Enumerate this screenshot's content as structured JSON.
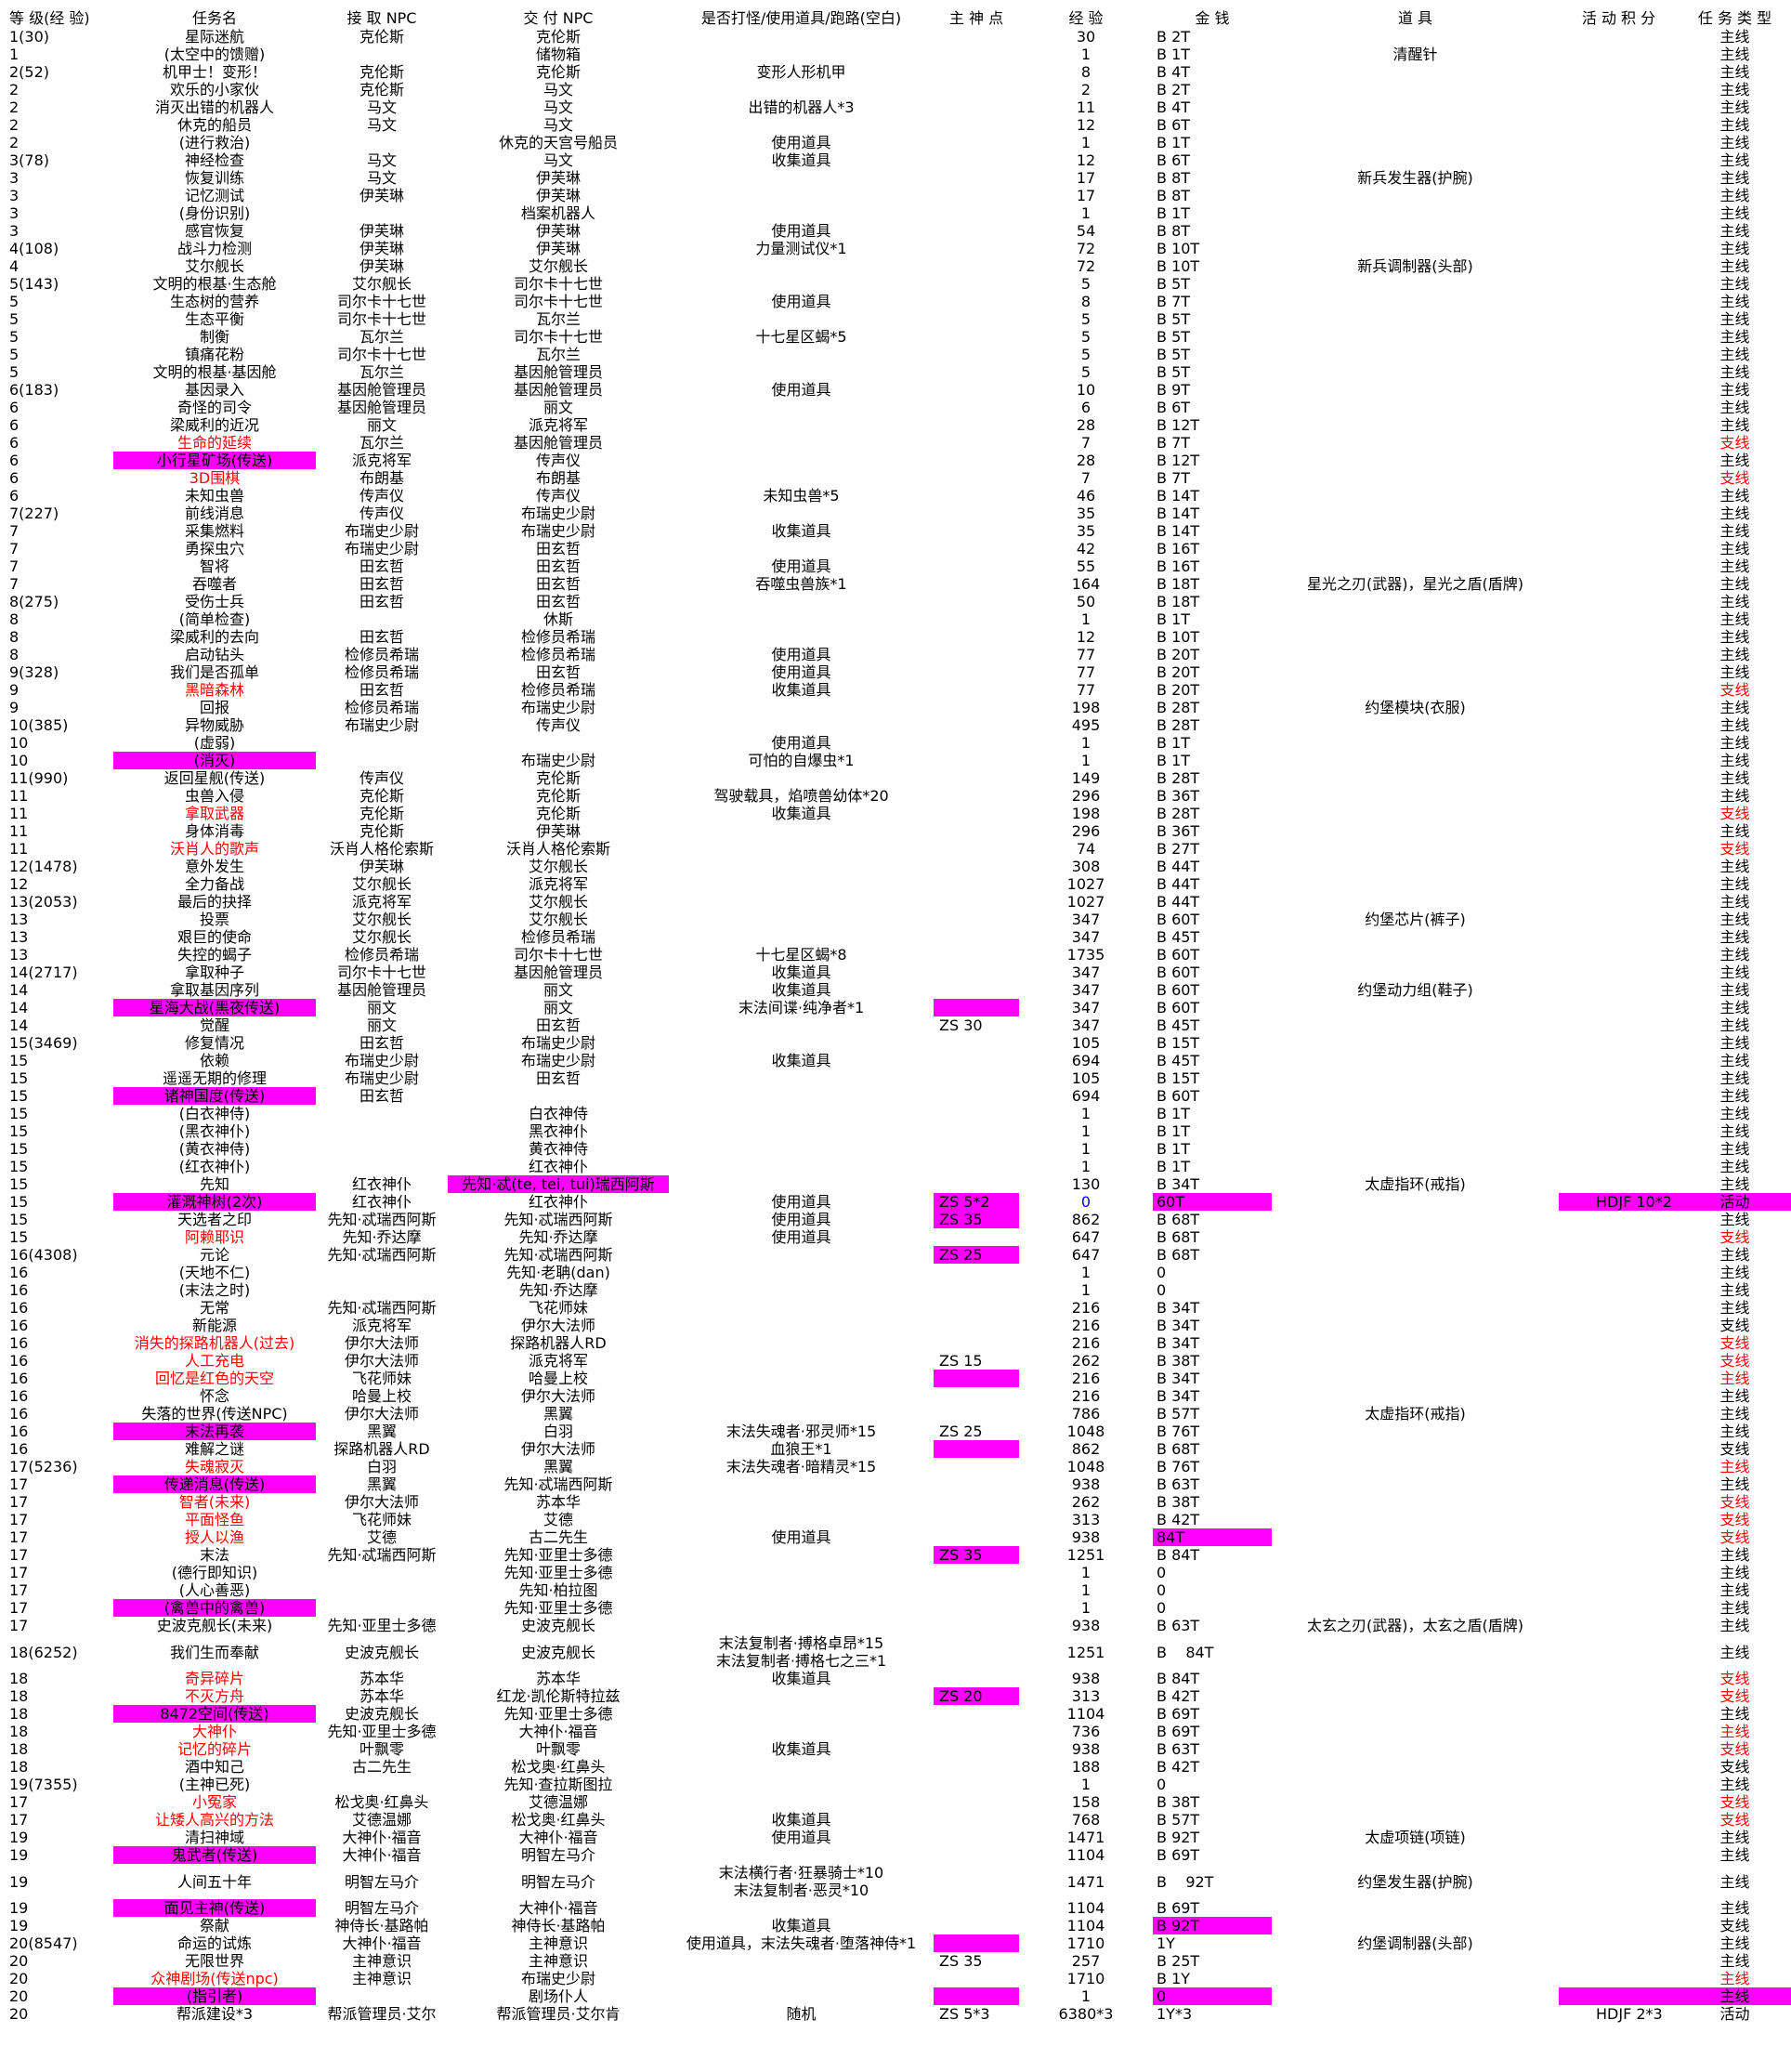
{
  "headers": [
    "等 级(经 验)",
    "任务名",
    "接 取 NPC",
    "交 付 NPC",
    "是否打怪/使用道具/跑路(空白)",
    "主 神 点",
    "经 验",
    "金 钱",
    "道 具",
    "活 动 积 分",
    "任 务 类 型"
  ],
  "rows": [
    [
      "1(30)",
      "星际迷航",
      "克伦斯",
      "克伦斯",
      "",
      "",
      "30",
      "B    2T",
      "",
      "",
      "主线"
    ],
    [
      "1",
      "(太空中的馈赠)",
      "",
      "储物箱",
      "",
      "",
      "1",
      "B    1T",
      "清醒针",
      "",
      "主线"
    ],
    [
      "2(52)",
      "机甲士！变形！",
      "克伦斯",
      "克伦斯",
      "变形人形机甲",
      "",
      "8",
      "B    4T",
      "",
      "",
      "主线"
    ],
    [
      "2",
      "欢乐的小家伙",
      "克伦斯",
      "马文",
      "",
      "",
      "2",
      "B    2T",
      "",
      "",
      "主线"
    ],
    [
      "2",
      "消灭出错的机器人",
      "马文",
      "马文",
      "出错的机器人*3",
      "",
      "11",
      "B    4T",
      "",
      "",
      "主线"
    ],
    [
      "2",
      "休克的船员",
      "马文",
      "马文",
      "",
      "",
      "12",
      "B    6T",
      "",
      "",
      "主线"
    ],
    [
      "2",
      "(进行救治)",
      "",
      "休克的天宫号船员",
      "使用道具",
      "",
      "1",
      "B    1T",
      "",
      "",
      "主线"
    ],
    [
      "3(78)",
      "神经检查",
      "马文",
      "马文",
      "收集道具",
      "",
      "12",
      "B    6T",
      "",
      "",
      "主线"
    ],
    [
      "3",
      "恢复训练",
      "马文",
      "伊芙琳",
      "",
      "",
      "17",
      "B    8T",
      "新兵发生器(护腕)",
      "",
      "主线"
    ],
    [
      "3",
      "记忆测试",
      "伊芙琳",
      "伊芙琳",
      "",
      "",
      "17",
      "B    8T",
      "",
      "",
      "主线"
    ],
    [
      "3",
      "(身份识别)",
      "",
      "档案机器人",
      "",
      "",
      "1",
      "B    1T",
      "",
      "",
      "主线"
    ],
    [
      "3",
      "感官恢复",
      "伊芙琳",
      "伊芙琳",
      "使用道具",
      "",
      "54",
      "B    8T",
      "",
      "",
      "主线"
    ],
    [
      "4(108)",
      "战斗力检测",
      "伊芙琳",
      "伊芙琳",
      "力量测试仪*1",
      "",
      "72",
      "B    10T",
      "",
      "",
      "主线"
    ],
    [
      "4",
      "艾尔舰长",
      "伊芙琳",
      "艾尔舰长",
      "",
      "",
      "72",
      "B    10T",
      "新兵调制器(头部)",
      "",
      "主线"
    ],
    [
      "5(143)",
      "文明的根基·生态舱",
      "艾尔舰长",
      "司尔卡十七世",
      "",
      "",
      "5",
      "B    5T",
      "",
      "",
      "主线"
    ],
    [
      "5",
      "生态树的营养",
      "司尔卡十七世",
      "司尔卡十七世",
      "使用道具",
      "",
      "8",
      "B    7T",
      "",
      "",
      "主线"
    ],
    [
      "5",
      "生态平衡",
      "司尔卡十七世",
      "瓦尔兰",
      "",
      "",
      "5",
      "B    5T",
      "",
      "",
      "主线"
    ],
    [
      "5",
      "制衡",
      "瓦尔兰",
      "司尔卡十七世",
      "十七星区蝎*5",
      "",
      "5",
      "B    5T",
      "",
      "",
      "主线"
    ],
    [
      "5",
      "镇痛花粉",
      "司尔卡十七世",
      "瓦尔兰",
      "",
      "",
      "5",
      "B    5T",
      "",
      "",
      "主线"
    ],
    [
      "5",
      "文明的根基·基因舱",
      "瓦尔兰",
      "基因舱管理员",
      "",
      "",
      "5",
      "B    5T",
      "",
      "",
      "主线"
    ],
    [
      "6(183)",
      "基因录入",
      "基因舱管理员",
      "基因舱管理员",
      "使用道具",
      "",
      "10",
      "B    9T",
      "",
      "",
      "主线"
    ],
    [
      "6",
      "奇怪的司令",
      "基因舱管理员",
      "丽文",
      "",
      "",
      "6",
      "B    6T",
      "",
      "",
      "主线"
    ],
    [
      "6",
      "梁威利的近况",
      "丽文",
      "派克将军",
      "",
      "",
      "28",
      "B    12T",
      "",
      "",
      "主线"
    ],
    [
      "6",
      "生命的延续",
      "瓦尔兰",
      "基因舱管理员",
      "",
      "",
      "7",
      "B    7T",
      "",
      "",
      "支线"
    ],
    [
      "6",
      "小行星矿场(传送)",
      "派克将军",
      "传声仪",
      "",
      "",
      "28",
      "B    12T",
      "",
      "",
      "主线"
    ],
    [
      "6",
      "3D围棋",
      "布朗基",
      "布朗基",
      "",
      "",
      "7",
      "B    7T",
      "",
      "",
      "支线"
    ],
    [
      "6",
      "未知虫兽",
      "传声仪",
      "传声仪",
      "未知虫兽*5",
      "",
      "46",
      "B    14T",
      "",
      "",
      "主线"
    ],
    [
      "7(227)",
      "前线消息",
      "传声仪",
      "布瑞史少尉",
      "",
      "",
      "35",
      "B    14T",
      "",
      "",
      "主线"
    ],
    [
      "7",
      "采集燃料",
      "布瑞史少尉",
      "布瑞史少尉",
      "收集道具",
      "",
      "35",
      "B    14T",
      "",
      "",
      "主线"
    ],
    [
      "7",
      "勇探虫穴",
      "布瑞史少尉",
      "田玄哲",
      "",
      "",
      "42",
      "B    16T",
      "",
      "",
      "主线"
    ],
    [
      "7",
      "智将",
      "田玄哲",
      "田玄哲",
      "使用道具",
      "",
      "55",
      "B    16T",
      "",
      "",
      "主线"
    ],
    [
      "7",
      "吞噬者",
      "田玄哲",
      "田玄哲",
      "吞噬虫兽族*1",
      "",
      "164",
      "B    18T",
      "星光之刃(武器)，星光之盾(盾牌)",
      "",
      "主线"
    ],
    [
      "8(275)",
      "受伤士兵",
      "田玄哲",
      "田玄哲",
      "",
      "",
      "50",
      "B    18T",
      "",
      "",
      "主线"
    ],
    [
      "8",
      "(简单检查)",
      "",
      "休斯",
      "",
      "",
      "1",
      "B    1T",
      "",
      "",
      "主线"
    ],
    [
      "8",
      "梁威利的去向",
      "田玄哲",
      "检修员希瑞",
      "",
      "",
      "12",
      "B    10T",
      "",
      "",
      "主线"
    ],
    [
      "8",
      "启动钻头",
      "检修员希瑞",
      "检修员希瑞",
      "使用道具",
      "",
      "77",
      "B    20T",
      "",
      "",
      "主线"
    ],
    [
      "9(328)",
      "我们是否孤单",
      "检修员希瑞",
      "田玄哲",
      "使用道具",
      "",
      "77",
      "B    20T",
      "",
      "",
      "主线"
    ],
    [
      "9",
      "黑暗森林",
      "田玄哲",
      "检修员希瑞",
      "收集道具",
      "",
      "77",
      "B    20T",
      "",
      "",
      "支线"
    ],
    [
      "9",
      "回报",
      "检修员希瑞",
      "布瑞史少尉",
      "",
      "",
      "198",
      "B    28T",
      "约堡模块(衣服)",
      "",
      "主线"
    ],
    [
      "10(385)",
      "异物威胁",
      "布瑞史少尉",
      "传声仪",
      "",
      "",
      "495",
      "B    28T",
      "",
      "",
      "主线"
    ],
    [
      "10",
      "(虚弱)",
      "",
      "",
      "使用道具",
      "",
      "1",
      "B    1T",
      "",
      "",
      "主线"
    ],
    [
      "10",
      "(消灭)",
      "",
      "布瑞史少尉",
      "可怕的自爆虫*1",
      "",
      "1",
      "B    1T",
      "",
      "",
      "主线"
    ],
    [
      "11(990)",
      "返回星舰(传送)",
      "传声仪",
      "克伦斯",
      "",
      "",
      "149",
      "B    28T",
      "",
      "",
      "主线"
    ],
    [
      "11",
      "虫兽入侵",
      "克伦斯",
      "克伦斯",
      "驾驶载具，焰喷兽幼体*20",
      "",
      "296",
      "B    36T",
      "",
      "",
      "主线"
    ],
    [
      "11",
      "拿取武器",
      "克伦斯",
      "克伦斯",
      "收集道具",
      "",
      "198",
      "B    28T",
      "",
      "",
      "支线"
    ],
    [
      "11",
      "身体消毒",
      "克伦斯",
      "伊芙琳",
      "",
      "",
      "296",
      "B    36T",
      "",
      "",
      "主线"
    ],
    [
      "11",
      "沃肖人的歌声",
      "沃肖人格伦索斯",
      "沃肖人格伦索斯",
      "",
      "",
      "74",
      "B    27T",
      "",
      "",
      "支线"
    ],
    [
      "12(1478)",
      "意外发生",
      "伊芙琳",
      "艾尔舰长",
      "",
      "",
      "308",
      "B    44T",
      "",
      "",
      "主线"
    ],
    [
      "12",
      "全力备战",
      "艾尔舰长",
      "派克将军",
      "",
      "",
      "1027",
      "B    44T",
      "",
      "",
      "主线"
    ],
    [
      "13(2053)",
      "最后的抉择",
      "派克将军",
      "艾尔舰长",
      "",
      "",
      "1027",
      "B    44T",
      "",
      "",
      "主线"
    ],
    [
      "13",
      "投票",
      "艾尔舰长",
      "艾尔舰长",
      "",
      "",
      "347",
      "B    60T",
      "约堡芯片(裤子)",
      "",
      "主线"
    ],
    [
      "13",
      "艰巨的使命",
      "艾尔舰长",
      "检修员希瑞",
      "",
      "",
      "347",
      "B    45T",
      "",
      "",
      "主线"
    ],
    [
      "13",
      "失控的蝎子",
      "检修员希瑞",
      "司尔卡十七世",
      "十七星区蝎*8",
      "",
      "1735",
      "B    60T",
      "",
      "",
      "主线"
    ],
    [
      "14(2717)",
      "拿取种子",
      "司尔卡十七世",
      "基因舱管理员",
      "收集道具",
      "",
      "347",
      "B    60T",
      "",
      "",
      "主线"
    ],
    [
      "14",
      "拿取基因序列",
      "基因舱管理员",
      "丽文",
      "收集道具",
      "",
      "347",
      "B    60T",
      "约堡动力组(鞋子)",
      "",
      "主线"
    ],
    [
      "14",
      "星海大战(黑夜传送)",
      "丽文",
      "丽文",
      "末法间谍·纯净者*1",
      "",
      "347",
      "B    60T",
      "",
      "",
      "主线"
    ],
    [
      "14",
      "觉醒",
      "丽文",
      "田玄哲",
      "",
      "ZS  30",
      "347",
      "B    45T",
      "",
      "",
      "主线"
    ],
    [
      "15(3469)",
      "修复情况",
      "田玄哲",
      "布瑞史少尉",
      "",
      "",
      "105",
      "B    15T",
      "",
      "",
      "主线"
    ],
    [
      "15",
      "依赖",
      "布瑞史少尉",
      "布瑞史少尉",
      "收集道具",
      "",
      "694",
      "B    45T",
      "",
      "",
      "主线"
    ],
    [
      "15",
      "遥遥无期的修理",
      "布瑞史少尉",
      "田玄哲",
      "",
      "",
      "105",
      "B    15T",
      "",
      "",
      "主线"
    ],
    [
      "15",
      "诸神国度(传送)",
      "田玄哲",
      "",
      "",
      "",
      "694",
      "B    60T",
      "",
      "",
      "主线"
    ],
    [
      "15",
      "(白衣神侍)",
      "",
      "白衣神侍",
      "",
      "",
      "1",
      "B    1T",
      "",
      "",
      "主线"
    ],
    [
      "15",
      "(黑衣神仆)",
      "",
      "黑衣神仆",
      "",
      "",
      "1",
      "B    1T",
      "",
      "",
      "主线"
    ],
    [
      "15",
      "(黄衣神侍)",
      "",
      "黄衣神侍",
      "",
      "",
      "1",
      "B    1T",
      "",
      "",
      "主线"
    ],
    [
      "15",
      "(红衣神仆)",
      "",
      "红衣神仆",
      "",
      "",
      "1",
      "B    1T",
      "",
      "",
      "主线"
    ],
    [
      "15",
      "先知",
      "红衣神仆",
      "先知·忒(te, tei, tui)瑞西阿斯",
      "",
      "",
      "130",
      "B    34T",
      "太虚指环(戒指)",
      "",
      "主线"
    ],
    [
      "15",
      "灌溉神树(2次)",
      "红衣神仆",
      "红衣神仆",
      "使用道具",
      "ZS  5*2",
      "0",
      "60T",
      "",
      "HDJF   10*2",
      "活动"
    ],
    [
      "15",
      "天选者之印",
      "先知·忒瑞西阿斯",
      "先知·忒瑞西阿斯",
      "使用道具",
      "ZS  35",
      "862",
      "B    68T",
      "",
      "",
      "主线"
    ],
    [
      "15",
      "阿赖耶识",
      "先知·乔达摩",
      "先知·乔达摩",
      "使用道具",
      "",
      "647",
      "B    68T",
      "",
      "",
      "支线"
    ],
    [
      "16(4308)",
      "元论",
      "先知·忒瑞西阿斯",
      "先知·忒瑞西阿斯",
      "",
      "ZS  25",
      "647",
      "B    68T",
      "",
      "",
      "主线"
    ],
    [
      "16",
      "(天地不仁)",
      "",
      "先知·老聃(dan)",
      "",
      "",
      "1",
      "0",
      "",
      "",
      "主线"
    ],
    [
      "16",
      "(末法之时)",
      "",
      "先知·乔达摩",
      "",
      "",
      "1",
      "0",
      "",
      "",
      "主线"
    ],
    [
      "16",
      "无常",
      "先知·忒瑞西阿斯",
      "飞花师妹",
      "",
      "",
      "216",
      "B    34T",
      "",
      "",
      "主线"
    ],
    [
      "16",
      "新能源",
      "派克将军",
      "伊尔大法师",
      "",
      "",
      "216",
      "B    34T",
      "",
      "",
      "支线"
    ],
    [
      "16",
      "消失的探路机器人(过去)",
      "伊尔大法师",
      "探路机器人RD",
      "",
      "",
      "216",
      "B    34T",
      "",
      "",
      "支线"
    ],
    [
      "16",
      "人工充电",
      "伊尔大法师",
      "派克将军",
      "",
      "ZS  15",
      "262",
      "B    38T",
      "",
      "",
      "支线"
    ],
    [
      "16",
      "回忆是红色的天空",
      "飞花师妹",
      "哈曼上校",
      "",
      "",
      "216",
      "B    34T",
      "",
      "",
      "主线"
    ],
    [
      "16",
      "怀念",
      "哈曼上校",
      "伊尔大法师",
      "",
      "",
      "216",
      "B    34T",
      "",
      "",
      "主线"
    ],
    [
      "16",
      "失落的世界(传送NPC)",
      "伊尔大法师",
      "黑翼",
      "",
      "",
      "786",
      "B    57T",
      "太虚指环(戒指)",
      "",
      "主线"
    ],
    [
      "16",
      "末法再袭",
      "黑翼",
      "白羽",
      "末法失魂者·邪灵师*15",
      "ZS  25",
      "1048",
      "B    76T",
      "",
      "",
      "主线"
    ],
    [
      "16",
      "难解之谜",
      "探路机器人RD",
      "伊尔大法师",
      "血狼王*1",
      "",
      "862",
      "B    68T",
      "",
      "",
      "支线"
    ],
    [
      "17(5236)",
      "失魂寂灭",
      "白羽",
      "黑翼",
      "末法失魂者·暗精灵*15",
      "",
      "1048",
      "B    76T",
      "",
      "",
      "主线"
    ],
    [
      "17",
      "传递消息(传送)",
      "黑翼",
      "先知·忒瑞西阿斯",
      "",
      "",
      "938",
      "B    63T",
      "",
      "",
      "主线"
    ],
    [
      "17",
      "智者(未来)",
      "伊尔大法师",
      "苏本华",
      "",
      "",
      "262",
      "B    38T",
      "",
      "",
      "支线"
    ],
    [
      "17",
      "平面怪鱼",
      "飞花师妹",
      "艾德",
      "",
      "",
      "313",
      "B    42T",
      "",
      "",
      "支线"
    ],
    [
      "17",
      "授人以渔",
      "艾德",
      "古二先生",
      "使用道具",
      "",
      "938",
      "84T",
      "",
      "",
      "支线"
    ],
    [
      "17",
      "末法",
      "先知·忒瑞西阿斯",
      "先知·亚里士多德",
      "",
      "ZS  35",
      "1251",
      "B    84T",
      "",
      "",
      "主线"
    ],
    [
      "17",
      "(德行即知识)",
      "",
      "先知·亚里士多德",
      "",
      "",
      "1",
      "0",
      "",
      "",
      "主线"
    ],
    [
      "17",
      "(人心善恶)",
      "",
      "先知·柏拉图",
      "",
      "",
      "1",
      "0",
      "",
      "",
      "主线"
    ],
    [
      "17",
      "(禽兽中的禽兽)",
      "",
      "先知·亚里士多德",
      "",
      "",
      "1",
      "0",
      "",
      "",
      "主线"
    ],
    [
      "17",
      "史波克舰长(未来)",
      "先知·亚里士多德",
      "史波克舰长",
      "",
      "",
      "938",
      "B    63T",
      "太玄之刃(武器)，太玄之盾(盾牌)",
      "",
      "主线"
    ],
    [
      "18(6252)",
      "我们生而奉献",
      "史波克舰长",
      "史波克舰长",
      "末法复制者·搏格卓昂*15\n末法复制者·搏格七之三*1",
      "",
      "1251",
      "B    84T",
      "",
      "",
      "主线"
    ],
    [
      "18",
      "奇异碎片",
      "苏本华",
      "苏本华",
      "收集道具",
      "",
      "938",
      "B    84T",
      "",
      "",
      "支线"
    ],
    [
      "18",
      "不灭方舟",
      "苏本华",
      "红龙·凯伦斯特拉兹",
      "",
      "ZS  20",
      "313",
      "B    42T",
      "",
      "",
      "支线"
    ],
    [
      "18",
      "8472空间(传送)",
      "史波克舰长",
      "先知·亚里士多德",
      "",
      "",
      "1104",
      "B    69T",
      "",
      "",
      "主线"
    ],
    [
      "18",
      "大神仆",
      "先知·亚里士多德",
      "大神仆·福音",
      "",
      "",
      "736",
      "B    69T",
      "",
      "",
      "主线"
    ],
    [
      "18",
      "记忆的碎片",
      "叶飘零",
      "叶飘零",
      "收集道具",
      "",
      "938",
      "B    63T",
      "",
      "",
      "支线"
    ],
    [
      "18",
      "酒中知己",
      "古二先生",
      "松戈奥·红鼻头",
      "",
      "",
      "188",
      "B    42T",
      "",
      "",
      "支线"
    ],
    [
      "19(7355)",
      "(主神已死)",
      "",
      "先知·查拉斯图拉",
      "",
      "",
      "1",
      "0",
      "",
      "",
      "主线"
    ],
    [
      "17",
      "小冤家",
      "松戈奥·红鼻头",
      "艾德温娜",
      "",
      "",
      "158",
      "B    38T",
      "",
      "",
      "支线"
    ],
    [
      "17",
      "让矮人高兴的方法",
      "艾德温娜",
      "松戈奥·红鼻头",
      "收集道具",
      "",
      "768",
      "B    57T",
      "",
      "",
      "支线"
    ],
    [
      "19",
      "清扫神域",
      "大神仆·福音",
      "大神仆·福音",
      "使用道具",
      "",
      "1471",
      "B    92T",
      "太虚项链(项链)",
      "",
      "主线"
    ],
    [
      "19",
      "鬼武者(传送)",
      "大神仆·福音",
      "明智左马介",
      "",
      "",
      "1104",
      "B    69T",
      "",
      "",
      "主线"
    ],
    [
      "19",
      "人间五十年",
      "明智左马介",
      "明智左马介",
      "末法横行者·狂暴骑士*10\n末法复制者·恶灵*10",
      "",
      "1471",
      "B    92T",
      "约堡发生器(护腕)",
      "",
      "主线"
    ],
    [
      "19",
      "面见主神(传送)",
      "明智左马介",
      "大神仆·福音",
      "",
      "",
      "1104",
      "B    69T",
      "",
      "",
      "主线"
    ],
    [
      "19",
      "祭献",
      "神侍长·基路帕",
      "神侍长·基路帕",
      "收集道具",
      "",
      "1104",
      "B    92T",
      "",
      "",
      "支线"
    ],
    [
      "20(8547)",
      "命运的试炼",
      "大神仆·福音",
      "主神意识",
      "使用道具，末法失魂者·堕落神侍*1",
      "",
      "1710",
      "1Y",
      "约堡调制器(头部)",
      "",
      "主线"
    ],
    [
      "20",
      "无限世界",
      "主神意识",
      "主神意识",
      "",
      "ZS  35",
      "257",
      "B    25T",
      "",
      "",
      "主线"
    ],
    [
      "20",
      "众神剧场(传送npc)",
      "主神意识",
      "布瑞史少尉",
      "",
      "",
      "1710",
      "B    1Y",
      "",
      "",
      "主线"
    ],
    [
      "20",
      "(指引者)",
      "",
      "剧场仆人",
      "",
      "",
      "1",
      "0",
      "",
      "",
      "主线"
    ],
    [
      "20",
      "帮派建设*3",
      "帮派管理员·艾尔",
      "帮派管理员·艾尔肯",
      "随机",
      "ZS  5*3",
      "6380*3",
      "1Y*3",
      "",
      "HDJF   2*3",
      "活动"
    ]
  ],
  "highlights": {
    "name_red": [
      23,
      25,
      37,
      44,
      46,
      68,
      74,
      75,
      76,
      81,
      83,
      84,
      85,
      92,
      93,
      95,
      96,
      99,
      100,
      108
    ],
    "name_magenta": [
      24,
      41,
      55,
      60,
      66,
      79,
      82,
      89,
      94,
      102,
      104,
      109
    ],
    "npc_magenta": [
      65
    ],
    "zs_magenta": [
      55,
      66,
      67,
      69,
      76,
      80,
      86,
      93,
      106,
      109
    ],
    "gold_magenta": [
      66,
      85,
      105,
      109
    ],
    "pts_magenta": [
      66,
      109
    ],
    "type_red": [
      23,
      25,
      37,
      44,
      46,
      68,
      74,
      75,
      76,
      81,
      83,
      84,
      85,
      92,
      93,
      95,
      96,
      99,
      100,
      108
    ],
    "type_magenta": [
      66,
      109
    ],
    "exp_blue": [
      66
    ],
    "colors": {
      "magenta": "#ff00ff",
      "red": "#ff0000",
      "blue": "#0000ff"
    }
  }
}
